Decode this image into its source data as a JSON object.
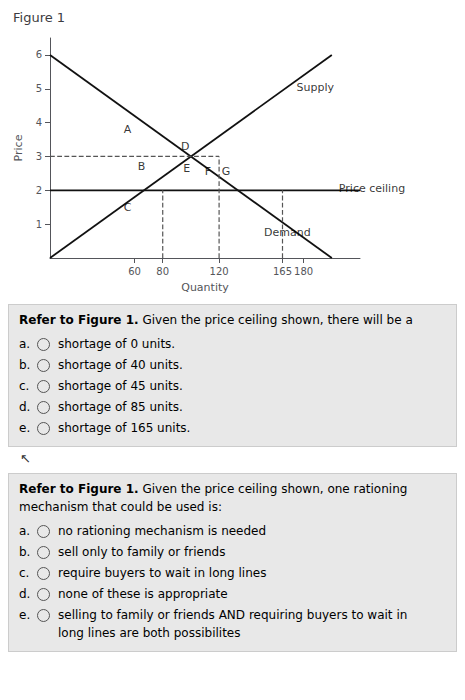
{
  "chart_data": {
    "type": "line",
    "title": "Figure 1",
    "x_label": "Quantity",
    "y_label": "Price",
    "xlim": [
      0,
      220
    ],
    "ylim": [
      0,
      6.5
    ],
    "xticks": [
      60,
      80,
      120,
      165,
      180
    ],
    "yticks": [
      1,
      2,
      3,
      4,
      5,
      6
    ],
    "grid": false,
    "series": [
      {
        "x": [
          0,
          200
        ],
        "values": [
          6,
          0
        ],
        "color": "#111111",
        "line_style": "solid"
      },
      {
        "x": [
          0,
          200
        ],
        "values": [
          0,
          6
        ],
        "color": "#111111",
        "line_style": "solid"
      },
      {
        "x": [
          0,
          220
        ],
        "values": [
          2,
          2
        ],
        "color": "#111111",
        "line_style": "solid"
      },
      {
        "x": [
          0,
          120
        ],
        "values": [
          3,
          3
        ],
        "color": "#555555",
        "line_style": "dashed"
      },
      {
        "x": [
          80,
          80
        ],
        "values": [
          0,
          2
        ],
        "color": "#555555",
        "line_style": "dashed"
      },
      {
        "x": [
          165,
          165
        ],
        "values": [
          0,
          2
        ],
        "color": "#555555",
        "line_style": "dashed"
      },
      {
        "x": [
          120,
          120
        ],
        "values": [
          0,
          3
        ],
        "color": "#555555",
        "line_style": "dashed"
      }
    ],
    "annotations": [
      {
        "text": "Supply",
        "x": 175,
        "y": 5.05,
        "align": "left"
      },
      {
        "text": "Demand",
        "x": 185,
        "y": 0.75,
        "align": "right"
      },
      {
        "text": "Price ceiling",
        "x": 205,
        "y": 2.05,
        "align": "left"
      },
      {
        "text": "A",
        "x": 55,
        "y": 3.8,
        "align": "center"
      },
      {
        "text": "B",
        "x": 65,
        "y": 2.7,
        "align": "center"
      },
      {
        "text": "C",
        "x": 55,
        "y": 1.5,
        "align": "center"
      },
      {
        "text": "D",
        "x": 96,
        "y": 3.3,
        "align": "center"
      },
      {
        "text": "E",
        "x": 97,
        "y": 2.65,
        "align": "center"
      },
      {
        "text": "F",
        "x": 112,
        "y": 2.55,
        "align": "center"
      },
      {
        "text": "G",
        "x": 125,
        "y": 2.55,
        "align": "center"
      }
    ],
    "questions": [
      {
        "bold": "Refer to Figure 1.",
        "text": [
          "Given the price ceiling shown, there will be a"
        ],
        "options": [
          {
            "letter": "a.",
            "lines": [
              "shortage of 0 units."
            ]
          },
          {
            "letter": "b.",
            "lines": [
              "shortage of 40 units."
            ]
          },
          {
            "letter": "c.",
            "lines": [
              "shortage of 45 units."
            ]
          },
          {
            "letter": "d.",
            "lines": [
              "shortage of 85 units."
            ]
          },
          {
            "letter": "e.",
            "lines": [
              "shortage of 165 units."
            ]
          }
        ]
      },
      {
        "bold": "Refer to Figure 1.",
        "text": [
          "Given the price ceiling shown, one rationing",
          "mechanism that could be used is:"
        ],
        "options": [
          {
            "letter": "a.",
            "lines": [
              "no rationing mechanism is needed"
            ]
          },
          {
            "letter": "b.",
            "lines": [
              "sell only to family or friends"
            ]
          },
          {
            "letter": "c.",
            "lines": [
              "require buyers to wait in long lines"
            ]
          },
          {
            "letter": "d.",
            "lines": [
              "none of these is appropriate"
            ]
          },
          {
            "letter": "e.",
            "lines": [
              "selling to family or friends AND requiring buyers to wait in",
              "long lines are both possibilites"
            ]
          }
        ]
      }
    ],
    "pointer": "↖"
  }
}
